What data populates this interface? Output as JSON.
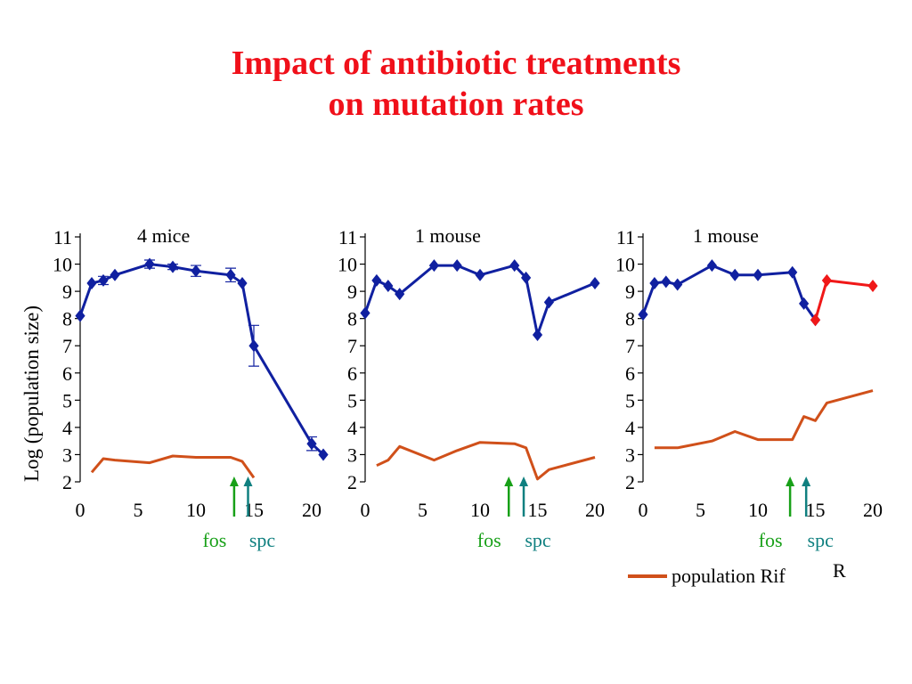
{
  "title_line1": "Impact of antibiotic treatments",
  "title_line2": "on mutation rates",
  "ylabel": "Log (population size)",
  "legend": {
    "label": "population Rif",
    "superscript": "R",
    "color": "#d0501a"
  },
  "colors": {
    "main": "#1020a0",
    "rif": "#d0501a",
    "resistant": "#f01818",
    "fos": "#18a018",
    "spc": "#108080"
  },
  "chart_data": [
    {
      "type": "line",
      "panel_label": "4 mice",
      "xlim": [
        0,
        20
      ],
      "ylim": [
        2,
        11
      ],
      "xticks": [
        "0",
        "5",
        "10",
        "15",
        "20"
      ],
      "yticks": [
        "2",
        "3",
        "4",
        "5",
        "6",
        "7",
        "8",
        "9",
        "10",
        "11"
      ],
      "annotations": [
        {
          "label": "fos",
          "x": 13.3
        },
        {
          "label": "spc",
          "x": 14.5
        }
      ],
      "series": [
        {
          "role": "main",
          "markers": true,
          "x": [
            0,
            1,
            2,
            3,
            6,
            8,
            10,
            13,
            14,
            15,
            20,
            21
          ],
          "y": [
            8.1,
            9.3,
            9.4,
            9.6,
            10.0,
            9.9,
            9.75,
            9.6,
            9.3,
            7.0,
            3.4,
            3.0
          ],
          "error": [
            0,
            0,
            0.15,
            0,
            0.15,
            0.1,
            0.2,
            0.25,
            0,
            0.75,
            0.25,
            0
          ]
        },
        {
          "role": "rif",
          "markers": false,
          "x": [
            1,
            2,
            3,
            6,
            8,
            10,
            13,
            14,
            15
          ],
          "y": [
            2.35,
            2.85,
            2.8,
            2.7,
            2.95,
            2.9,
            2.9,
            2.75,
            2.15
          ]
        }
      ]
    },
    {
      "type": "line",
      "panel_label": "1 mouse",
      "xlim": [
        0,
        20
      ],
      "ylim": [
        2,
        11
      ],
      "xticks": [
        "0",
        "5",
        "10",
        "15",
        "20"
      ],
      "yticks": [
        "2",
        "3",
        "4",
        "5",
        "6",
        "7",
        "8",
        "9",
        "10",
        "11"
      ],
      "annotations": [
        {
          "label": "fos",
          "x": 12.5
        },
        {
          "label": "spc",
          "x": 13.8
        }
      ],
      "series": [
        {
          "role": "main",
          "markers": true,
          "x": [
            0,
            1,
            2,
            3,
            6,
            8,
            10,
            13,
            14,
            15,
            16,
            20
          ],
          "y": [
            8.2,
            9.4,
            9.2,
            8.9,
            9.95,
            9.95,
            9.6,
            9.95,
            9.5,
            7.4,
            8.6,
            9.3
          ]
        },
        {
          "role": "rif",
          "markers": false,
          "x": [
            1,
            2,
            3,
            6,
            8,
            10,
            13,
            14,
            15,
            16,
            20
          ],
          "y": [
            2.6,
            2.8,
            3.3,
            2.8,
            3.15,
            3.45,
            3.4,
            3.25,
            2.1,
            2.45,
            2.9
          ]
        }
      ]
    },
    {
      "type": "line",
      "panel_label": "1 mouse",
      "xlim": [
        0,
        20
      ],
      "ylim": [
        2,
        11
      ],
      "xticks": [
        "0",
        "5",
        "10",
        "15",
        "20"
      ],
      "yticks": [
        "2",
        "3",
        "4",
        "5",
        "6",
        "7",
        "8",
        "9",
        "10",
        "11"
      ],
      "annotations": [
        {
          "label": "fos",
          "x": 12.8
        },
        {
          "label": "spc",
          "x": 14.2
        }
      ],
      "series": [
        {
          "role": "main",
          "markers": true,
          "x": [
            0,
            1,
            2,
            3,
            6,
            8,
            10,
            13,
            14,
            15
          ],
          "y": [
            8.15,
            9.3,
            9.35,
            9.25,
            9.95,
            9.6,
            9.6,
            9.7,
            8.55,
            7.95
          ]
        },
        {
          "role": "resistant",
          "markers": true,
          "x": [
            15,
            16,
            20
          ],
          "y": [
            7.95,
            9.4,
            9.2
          ]
        },
        {
          "role": "rif",
          "markers": false,
          "x": [
            1,
            3,
            6,
            8,
            10,
            13,
            14,
            15,
            16,
            20
          ],
          "y": [
            3.25,
            3.25,
            3.5,
            3.85,
            3.55,
            3.55,
            4.4,
            4.25,
            4.9,
            5.35
          ]
        }
      ]
    }
  ]
}
